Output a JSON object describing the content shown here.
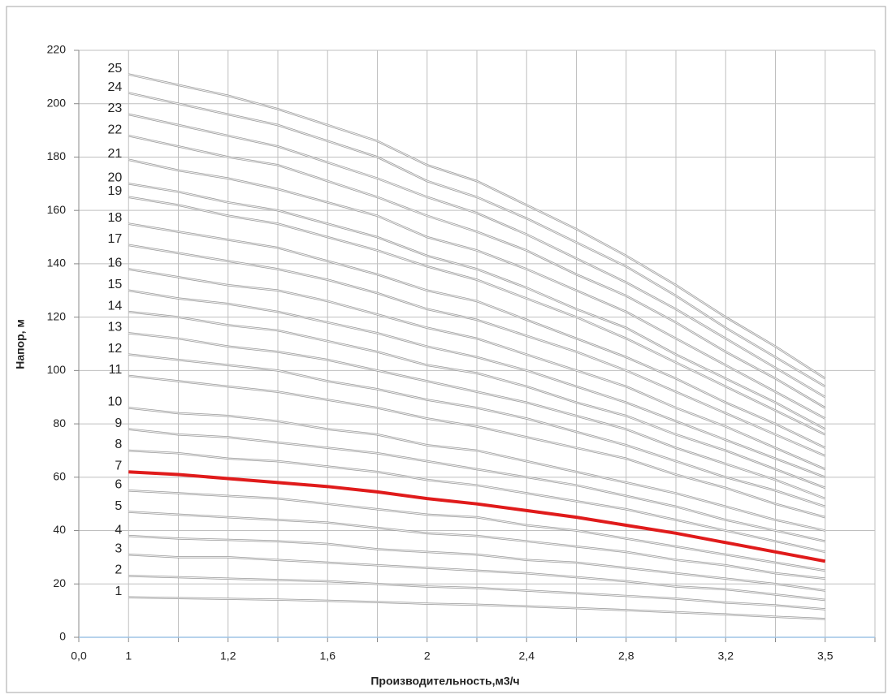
{
  "chart_data": {
    "type": "line",
    "x_label": "Производительность,м3/ч",
    "y_label": "Напор, м",
    "categories": [
      "0,0",
      "1",
      null,
      "1,2",
      null,
      "1,6",
      null,
      "2",
      null,
      "2,4",
      null,
      "2,8",
      null,
      "3,2",
      null,
      "3,5",
      null
    ],
    "ylim": [
      0,
      220
    ],
    "yticks": [
      0,
      20,
      40,
      60,
      80,
      100,
      120,
      140,
      160,
      180,
      200,
      220
    ],
    "grid": true,
    "series": [
      {
        "name": "1",
        "color": "#9a9a9a",
        "values": [
          null,
          15,
          14.7,
          14.4,
          14.1,
          13.7,
          13.2,
          12.6,
          12.2,
          11.6,
          10.9,
          10.2,
          9.4,
          8.6,
          7.7,
          6.9,
          null
        ]
      },
      {
        "name": "2",
        "color": "#9a9a9a",
        "values": [
          null,
          23,
          22.5,
          22,
          21.5,
          21,
          20,
          19,
          18.5,
          17.5,
          16.5,
          15.5,
          14.5,
          13,
          12,
          10.5,
          null
        ]
      },
      {
        "name": "3",
        "color": "#9a9a9a",
        "values": [
          null,
          31,
          30,
          30,
          29,
          28,
          27,
          26,
          25,
          24,
          22.5,
          21,
          19,
          18,
          16,
          14,
          null
        ]
      },
      {
        "name": "4",
        "color": "#9a9a9a",
        "values": [
          null,
          38,
          37,
          36.5,
          36,
          35,
          33,
          32,
          31,
          29,
          28,
          26,
          24,
          22,
          20,
          17.5,
          null
        ]
      },
      {
        "name": "5",
        "color": "#9a9a9a",
        "values": [
          null,
          47,
          46,
          45,
          44,
          43,
          41,
          39,
          38,
          36,
          34,
          32,
          29,
          27,
          24,
          22,
          null
        ]
      },
      {
        "name": "6",
        "color": "#9a9a9a",
        "values": [
          null,
          55,
          54,
          53,
          52,
          50,
          48,
          46,
          45,
          42,
          40,
          37,
          34,
          31,
          28,
          25,
          null
        ]
      },
      {
        "name": "7",
        "color": "#e01b1b",
        "values": [
          null,
          62,
          61,
          59.5,
          58,
          56.5,
          54.5,
          52,
          50,
          47.5,
          45,
          42,
          39,
          35.5,
          32,
          28.5,
          null
        ]
      },
      {
        "name": "8",
        "color": "#9a9a9a",
        "values": [
          null,
          70,
          69,
          67,
          66,
          64,
          62,
          59,
          57,
          54,
          51,
          48,
          44,
          40,
          36,
          32,
          null
        ]
      },
      {
        "name": "9",
        "color": "#9a9a9a",
        "values": [
          null,
          78,
          76,
          75,
          73,
          71,
          69,
          66,
          63,
          60,
          57,
          53,
          49,
          44,
          40,
          36,
          null
        ]
      },
      {
        "name": "10",
        "color": "#9a9a9a",
        "values": [
          null,
          86,
          84,
          83,
          81,
          78,
          76,
          72,
          70,
          66,
          62,
          58,
          54,
          49,
          44,
          40,
          null
        ]
      },
      {
        "name": "11",
        "color": "#9a9a9a",
        "values": [
          null,
          98,
          96,
          94,
          92,
          89,
          86,
          82,
          79,
          75,
          71,
          67,
          61,
          56,
          50,
          45,
          null
        ]
      },
      {
        "name": "12",
        "color": "#9a9a9a",
        "values": [
          null,
          106,
          104,
          102,
          100,
          96,
          93,
          89,
          86,
          82,
          77,
          72,
          66,
          60,
          55,
          49,
          null
        ]
      },
      {
        "name": "13",
        "color": "#9a9a9a",
        "values": [
          null,
          114,
          112,
          109,
          107,
          104,
          100,
          96,
          92,
          88,
          83,
          78,
          71,
          65,
          59,
          52,
          null
        ]
      },
      {
        "name": "14",
        "color": "#9a9a9a",
        "values": [
          null,
          122,
          120,
          117,
          115,
          111,
          107,
          102,
          99,
          94,
          88,
          83,
          76,
          70,
          63,
          56,
          null
        ]
      },
      {
        "name": "15",
        "color": "#9a9a9a",
        "values": [
          null,
          130,
          127,
          125,
          122,
          118,
          114,
          109,
          105,
          100,
          94,
          88,
          81,
          74,
          67,
          60,
          null
        ]
      },
      {
        "name": "16",
        "color": "#9a9a9a",
        "values": [
          null,
          138,
          135,
          132,
          130,
          126,
          121,
          116,
          112,
          106,
          100,
          94,
          86,
          79,
          71,
          63,
          null
        ]
      },
      {
        "name": "17",
        "color": "#9a9a9a",
        "values": [
          null,
          147,
          144,
          141,
          138,
          134,
          129,
          123,
          119,
          113,
          107,
          100,
          92,
          84,
          76,
          68,
          null
        ]
      },
      {
        "name": "18",
        "color": "#9a9a9a",
        "values": [
          null,
          155,
          152,
          149,
          146,
          141,
          136,
          130,
          126,
          119,
          112,
          105,
          97,
          88,
          80,
          71,
          null
        ]
      },
      {
        "name": "19",
        "color": "#9a9a9a",
        "values": [
          null,
          165,
          162,
          158,
          155,
          150,
          145,
          139,
          134,
          127,
          120,
          112,
          103,
          94,
          85,
          76,
          null
        ]
      },
      {
        "name": "20",
        "color": "#9a9a9a",
        "values": [
          null,
          170,
          167,
          163,
          160,
          155,
          150,
          143,
          138,
          131,
          123,
          116,
          106,
          97,
          88,
          78,
          null
        ]
      },
      {
        "name": "21",
        "color": "#9a9a9a",
        "values": [
          null,
          179,
          175,
          172,
          168,
          163,
          158,
          150,
          145,
          138,
          130,
          122,
          112,
          102,
          92,
          82,
          null
        ]
      },
      {
        "name": "22",
        "color": "#9a9a9a",
        "values": [
          null,
          188,
          184,
          180,
          177,
          171,
          165,
          158,
          152,
          145,
          136,
          128,
          118,
          107,
          97,
          86,
          null
        ]
      },
      {
        "name": "23",
        "color": "#9a9a9a",
        "values": [
          null,
          196,
          192,
          188,
          184,
          178,
          172,
          165,
          159,
          151,
          142,
          133,
          123,
          112,
          101,
          90,
          null
        ]
      },
      {
        "name": "24",
        "color": "#9a9a9a",
        "values": [
          null,
          204,
          200,
          196,
          192,
          186,
          180,
          171,
          165,
          157,
          148,
          139,
          128,
          116,
          105,
          94,
          null
        ]
      },
      {
        "name": "25",
        "color": "#9a9a9a",
        "values": [
          null,
          211,
          207,
          203,
          198,
          192,
          186,
          177,
          171,
          162,
          153,
          143,
          132,
          120,
          109,
          97,
          null
        ]
      }
    ]
  }
}
